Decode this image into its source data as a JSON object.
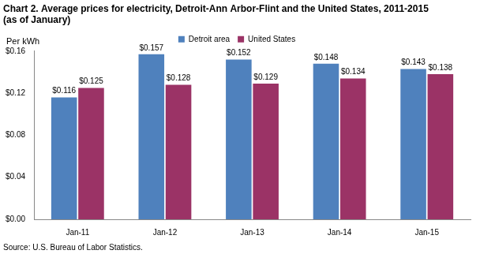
{
  "chart_data": {
    "type": "bar",
    "title": [
      "Chart 2. Average prices for electricity, Detroit-Ann Arbor-Flint and the United States, 2011-2015",
      "(as of January)"
    ],
    "y_label": "Per kWh",
    "source": "Source: U.S. Bureau of Labor Statistics.",
    "categories": [
      "Jan-11",
      "Jan-12",
      "Jan-13",
      "Jan-14",
      "Jan-15"
    ],
    "series": [
      {
        "name": "Detroit area",
        "color": "#4f81bd",
        "values": [
          0.116,
          0.157,
          0.152,
          0.148,
          0.143
        ],
        "value_labels": [
          "$0.116",
          "$0.157",
          "$0.152",
          "$0.148",
          "$0.143"
        ]
      },
      {
        "name": "United States",
        "color": "#9b3366",
        "values": [
          0.125,
          0.128,
          0.129,
          0.134,
          0.138
        ],
        "value_labels": [
          "$0.125",
          "$0.128",
          "$0.129",
          "$0.134",
          "$0.138"
        ]
      }
    ],
    "ylim": [
      0,
      0.16
    ],
    "yticks": [
      {
        "value": 0,
        "label": "$0.00"
      },
      {
        "value": 0.04,
        "label": "$0.04"
      },
      {
        "value": 0.08,
        "label": "$0.08"
      },
      {
        "value": 0.12,
        "label": "$0.12"
      },
      {
        "value": 0.16,
        "label": "$0.16"
      }
    ],
    "grid": false,
    "legend": "top",
    "data_labels": true
  }
}
